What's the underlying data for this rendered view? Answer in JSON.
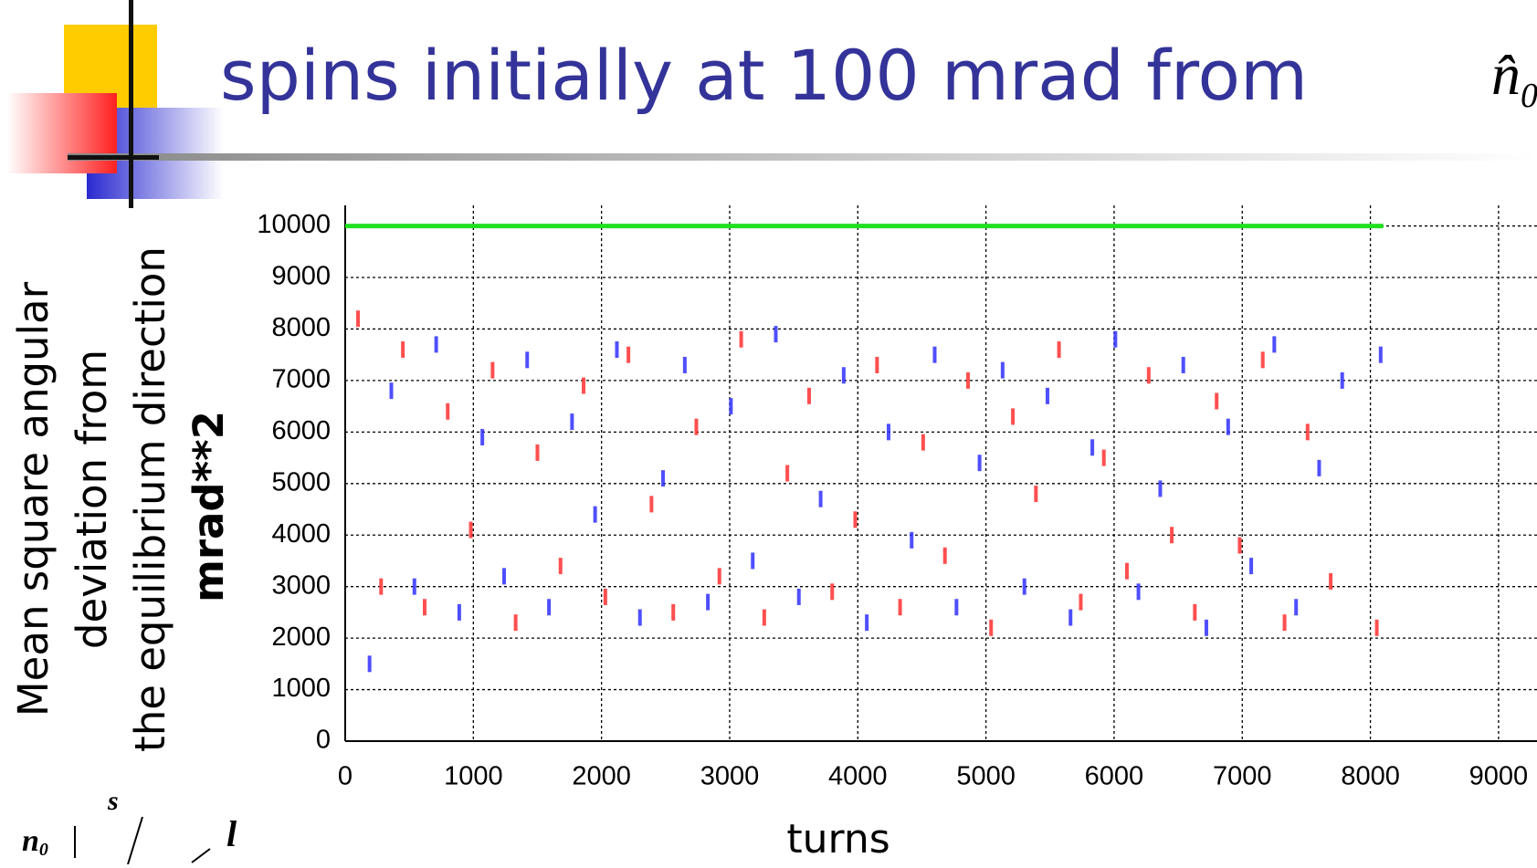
{
  "title": "spins initially at 100 mrad from",
  "title_symbol": "n̂",
  "title_symbol_sub": "0",
  "diagram": {
    "n": "n",
    "n_sub": "0",
    "s": "s⃗",
    "l": "l"
  },
  "chart_data": {
    "type": "scatter",
    "y_label_lines": [
      "Mean square angular",
      "deviation from",
      "the equilibrium direction"
    ],
    "y_label_unit": "mrad**2",
    "x_label": "turns",
    "xlim": [
      0,
      9300
    ],
    "ylim": [
      0,
      10400
    ],
    "xticks": [
      0,
      1000,
      2000,
      3000,
      4000,
      5000,
      6000,
      7000,
      8000,
      9000
    ],
    "yticks": [
      0,
      1000,
      2000,
      3000,
      4000,
      5000,
      6000,
      7000,
      8000,
      9000,
      10000
    ],
    "grid": true,
    "series": [
      {
        "color": "#ff3030",
        "x": [
          100,
          280,
          450,
          620,
          800,
          980,
          1150,
          1330,
          1500,
          1680,
          1860,
          2030,
          2210,
          2390,
          2560,
          2740,
          2920,
          3090,
          3270,
          3450,
          3620,
          3800,
          3980,
          4150,
          4330,
          4510,
          4680,
          4860,
          5040,
          5210,
          5390,
          5570,
          5740,
          5920,
          6100,
          6270,
          6450,
          6630,
          6800,
          6980,
          7160,
          7330,
          7510,
          7690,
          8050
        ],
        "values": [
          8200,
          3000,
          7600,
          2600,
          6400,
          4100,
          7200,
          2300,
          5600,
          3400,
          6900,
          2800,
          7500,
          4600,
          2500,
          6100,
          3200,
          7800,
          2400,
          5200,
          6700,
          2900,
          4300,
          7300,
          2600,
          5800,
          3600,
          7000,
          2200,
          6300,
          4800,
          7600,
          2700,
          5500,
          3300,
          7100,
          4000,
          2500,
          6600,
          3800,
          7400,
          2300,
          6000,
          3100,
          2200
        ]
      },
      {
        "color": "#3030ff",
        "x": [
          190,
          360,
          540,
          710,
          890,
          1070,
          1240,
          1420,
          1590,
          1770,
          1950,
          2120,
          2300,
          2480,
          2650,
          2830,
          3010,
          3180,
          3360,
          3540,
          3710,
          3890,
          4070,
          4240,
          4420,
          4600,
          4770,
          4950,
          5130,
          5300,
          5480,
          5660,
          5830,
          6010,
          6190,
          6360,
          6540,
          6720,
          6890,
          7070,
          7250,
          7420,
          7600,
          7780,
          8080
        ],
        "values": [
          1500,
          6800,
          3000,
          7700,
          2500,
          5900,
          3200,
          7400,
          2600,
          6200,
          4400,
          7600,
          2400,
          5100,
          7300,
          2700,
          6500,
          3500,
          7900,
          2800,
          4700,
          7100,
          2300,
          6000,
          3900,
          7500,
          2600,
          5400,
          7200,
          3000,
          6700,
          2400,
          5700,
          7800,
          2900,
          4900,
          7300,
          2200,
          6100,
          3400,
          7700,
          2600,
          5300,
          7000,
          7500
        ]
      },
      {
        "color": "#20e020",
        "style": "line",
        "x": [
          0,
          8100
        ],
        "values": [
          10000,
          10000
        ]
      }
    ]
  }
}
